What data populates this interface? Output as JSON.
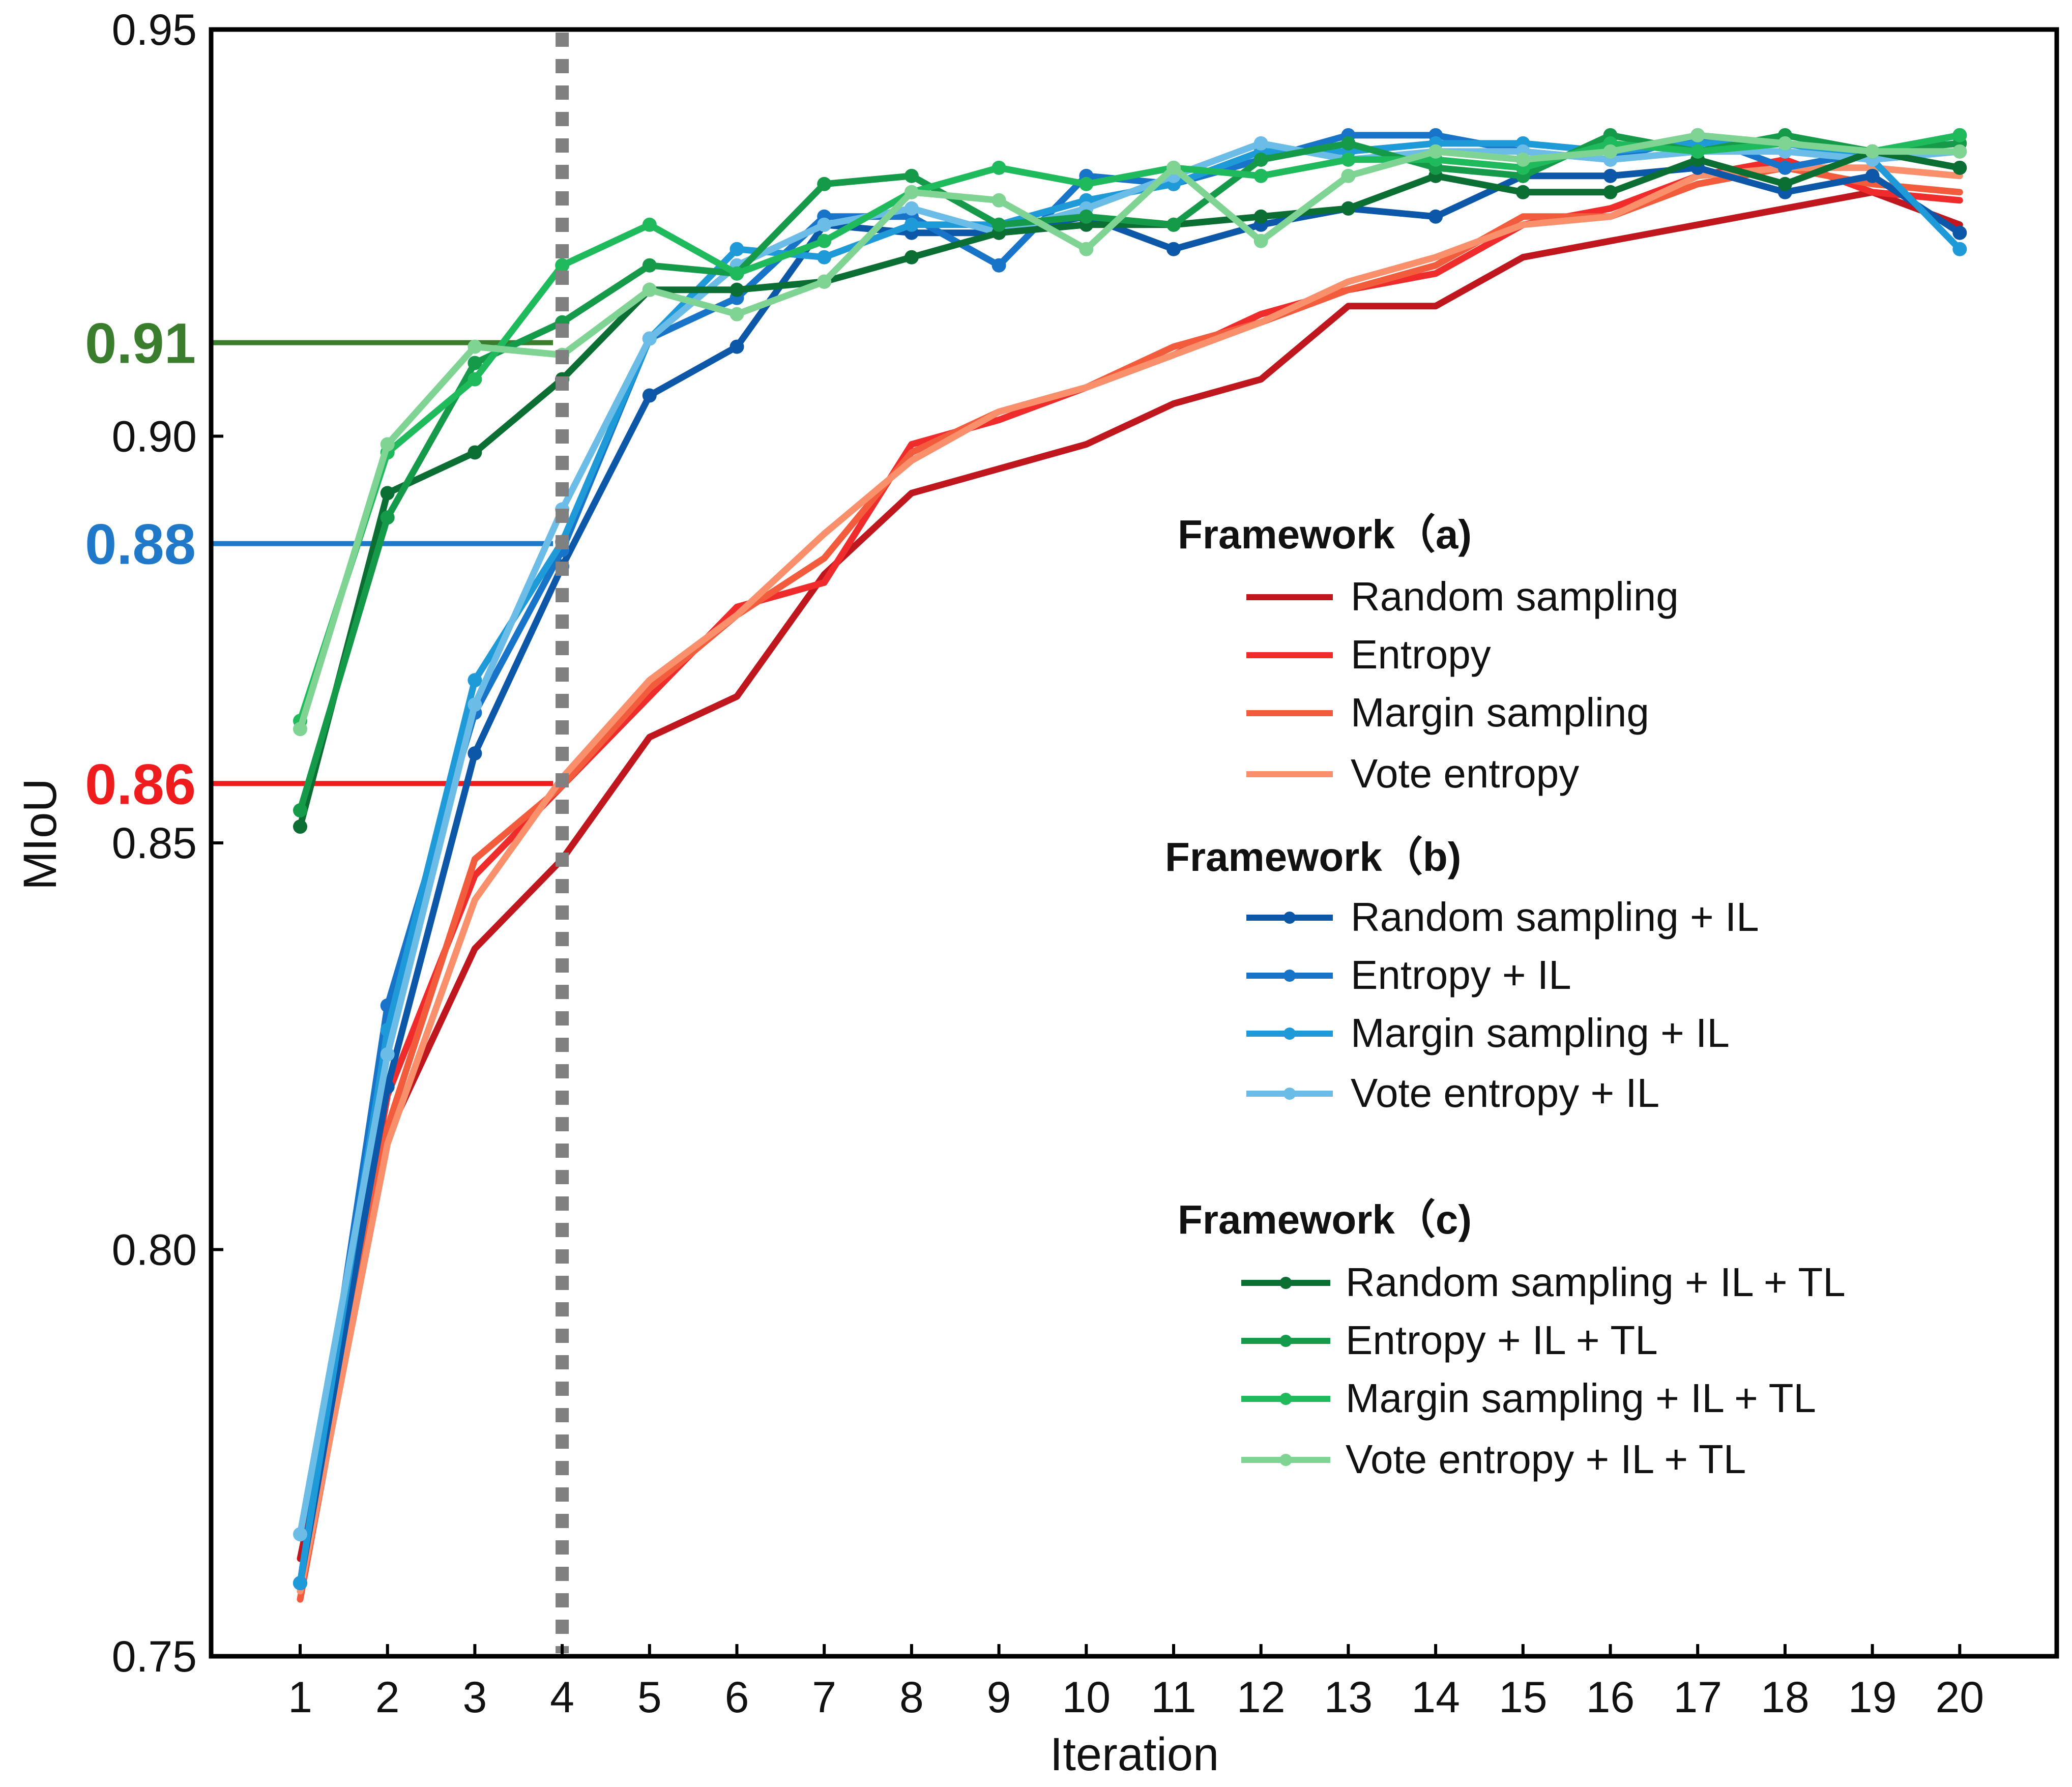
{
  "chart_data": {
    "type": "line",
    "xlabel": "Iteration",
    "ylabel": "MIoU",
    "xlim": [
      0,
      20.8
    ],
    "ylim": [
      0.75,
      0.95
    ],
    "x": [
      1,
      2,
      3,
      4,
      5,
      6,
      7,
      8,
      9,
      10,
      11,
      12,
      13,
      14,
      15,
      16,
      17,
      18,
      19,
      20
    ],
    "xticks": [
      "1",
      "2",
      "3",
      "4",
      "5",
      "6",
      "7",
      "8",
      "9",
      "10",
      "11",
      "12",
      "13",
      "14",
      "15",
      "16",
      "17",
      "18",
      "19",
      "20"
    ],
    "yticks": [
      {
        "value": 0.75,
        "label": "0.75"
      },
      {
        "value": 0.8,
        "label": "0.80"
      },
      {
        "value": 0.85,
        "label": "0.85"
      },
      {
        "value": 0.9,
        "label": "0.90"
      },
      {
        "value": 0.95,
        "label": "0.95"
      }
    ],
    "vline": {
      "x": 4,
      "style": "dotted",
      "color": "#808080"
    },
    "reference_lines": [
      {
        "label": "0.91",
        "value": 0.9115,
        "color": "#3a7d2c"
      },
      {
        "label": "0.88",
        "value": 0.8868,
        "color": "#1f78c8"
      },
      {
        "label": "0.86",
        "value": 0.8573,
        "color": "#ee1c1c"
      }
    ],
    "groups": [
      {
        "title": "Framework（a)",
        "series": [
          {
            "name": "Random sampling",
            "color": "#c0171f",
            "markers": false,
            "values": [
              0.762,
              0.814,
              0.837,
              0.848,
              0.863,
              0.868,
              0.883,
              0.893,
              0.896,
              0.899,
              0.904,
              0.907,
              0.916,
              0.916,
              0.922,
              0.924,
              0.926,
              0.928,
              0.93,
              0.926
            ]
          },
          {
            "name": "Entropy",
            "color": "#ef2b2b",
            "markers": false,
            "values": [
              0.759,
              0.819,
              0.846,
              0.857,
              0.868,
              0.879,
              0.882,
              0.899,
              0.902,
              0.906,
              0.91,
              0.915,
              0.918,
              0.92,
              0.926,
              0.928,
              0.932,
              0.934,
              0.93,
              0.929
            ]
          },
          {
            "name": "Margin sampling",
            "color": "#f25c3c",
            "markers": false,
            "values": [
              0.757,
              0.815,
              0.848,
              0.857,
              0.869,
              0.878,
              0.885,
              0.898,
              0.903,
              0.906,
              0.911,
              0.914,
              0.918,
              0.921,
              0.927,
              0.927,
              0.931,
              0.933,
              0.931,
              0.93
            ]
          },
          {
            "name": "Vote entropy",
            "color": "#f9906b",
            "markers": false,
            "values": [
              0.758,
              0.813,
              0.843,
              0.858,
              0.87,
              0.878,
              0.888,
              0.897,
              0.903,
              0.906,
              0.91,
              0.914,
              0.919,
              0.922,
              0.926,
              0.927,
              0.932,
              0.933,
              0.933,
              0.932
            ]
          }
        ]
      },
      {
        "title": "Framework（b)",
        "series": [
          {
            "name": "Random sampling + IL",
            "color": "#0c57a8",
            "markers": true,
            "values": [
              0.759,
              0.82,
              0.861,
              0.884,
              0.905,
              0.911,
              0.926,
              0.925,
              0.925,
              0.927,
              0.923,
              0.926,
              0.928,
              0.927,
              0.932,
              0.932,
              0.933,
              0.93,
              0.932,
              0.925
            ]
          },
          {
            "name": "Entropy + IL",
            "color": "#1874c8",
            "markers": true,
            "values": [
              0.759,
              0.83,
              0.866,
              0.886,
              0.912,
              0.917,
              0.927,
              0.927,
              0.921,
              0.932,
              0.931,
              0.934,
              0.937,
              0.937,
              0.935,
              0.934,
              0.937,
              0.933,
              0.935,
              0.937
            ]
          },
          {
            "name": "Margin sampling + IL",
            "color": "#1e9ad8",
            "markers": true,
            "values": [
              0.759,
              0.827,
              0.87,
              0.887,
              0.912,
              0.923,
              0.922,
              0.926,
              0.926,
              0.929,
              0.931,
              0.935,
              0.935,
              0.936,
              0.936,
              0.935,
              0.936,
              0.936,
              0.934,
              0.923
            ]
          },
          {
            "name": "Vote entropy + IL",
            "color": "#6cbce8",
            "markers": true,
            "values": [
              0.765,
              0.824,
              0.867,
              0.891,
              0.912,
              0.921,
              0.926,
              0.928,
              0.925,
              0.928,
              0.932,
              0.936,
              0.934,
              0.935,
              0.935,
              0.934,
              0.935,
              0.935,
              0.934,
              0.935
            ]
          }
        ]
      },
      {
        "title": "Framework（c)",
        "series": [
          {
            "name": "Random sampling + IL + TL",
            "color": "#0b6e32",
            "markers": true,
            "values": [
              0.852,
              0.893,
              0.898,
              0.907,
              0.918,
              0.918,
              0.919,
              0.922,
              0.925,
              0.926,
              0.926,
              0.927,
              0.928,
              0.932,
              0.93,
              0.93,
              0.934,
              0.931,
              0.935,
              0.933
            ]
          },
          {
            "name": "Entropy + IL + TL",
            "color": "#149a48",
            "markers": true,
            "values": [
              0.854,
              0.89,
              0.909,
              0.914,
              0.921,
              0.92,
              0.931,
              0.932,
              0.926,
              0.927,
              0.926,
              0.934,
              0.936,
              0.933,
              0.932,
              0.937,
              0.935,
              0.937,
              0.935,
              0.936
            ]
          },
          {
            "name": "Margin sampling + IL + TL",
            "color": "#1fba5c",
            "markers": true,
            "values": [
              0.865,
              0.898,
              0.907,
              0.921,
              0.926,
              0.92,
              0.924,
              0.93,
              0.933,
              0.931,
              0.933,
              0.932,
              0.934,
              0.934,
              0.933,
              0.936,
              0.935,
              0.936,
              0.935,
              0.937
            ]
          },
          {
            "name": "Vote entropy + IL + TL",
            "color": "#7fd494",
            "markers": true,
            "values": [
              0.864,
              0.899,
              0.911,
              0.91,
              0.918,
              0.915,
              0.919,
              0.93,
              0.929,
              0.923,
              0.933,
              0.924,
              0.932,
              0.935,
              0.934,
              0.935,
              0.937,
              0.936,
              0.935,
              0.935
            ]
          }
        ]
      }
    ]
  }
}
